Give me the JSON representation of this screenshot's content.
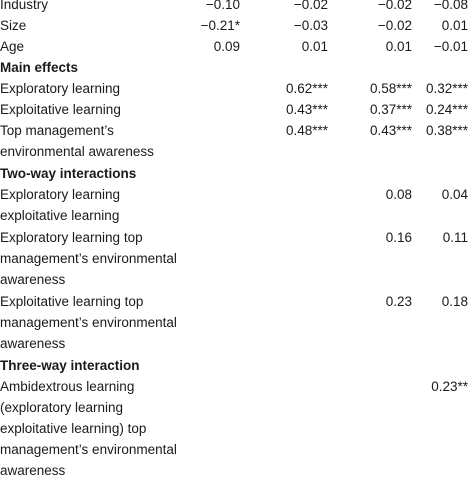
{
  "rows": [
    {
      "type": "data",
      "label": "Industry",
      "v": [
        "−0.10",
        "−0.02",
        "−0.02",
        "−0.08"
      ]
    },
    {
      "type": "data",
      "label": "Size",
      "v": [
        "−0.21*",
        "−0.03",
        "−0.02",
        "0.01"
      ]
    },
    {
      "type": "data",
      "label": "Age",
      "v": [
        "0.09",
        "0.01",
        "0.01",
        "−0.01"
      ]
    },
    {
      "type": "section",
      "label": "Main effects"
    },
    {
      "type": "data",
      "label": "Exploratory learning",
      "v": [
        "",
        "0.62***",
        "0.58***",
        "0.32***"
      ]
    },
    {
      "type": "data",
      "label": "Exploitative learning",
      "v": [
        "",
        "0.43***",
        "0.37***",
        "0.24***"
      ]
    },
    {
      "type": "data",
      "label": "Top management’s environmental awareness",
      "v": [
        "",
        "0.48***",
        "0.43***",
        "0.38***"
      ]
    },
    {
      "type": "section",
      "label": "Two-way interactions"
    },
    {
      "type": "data",
      "label": "Exploratory learning exploitative learning",
      "v": [
        "",
        "",
        "0.08",
        "0.04"
      ]
    },
    {
      "type": "data",
      "label": "Exploratory learning top management’s environmental awareness",
      "v": [
        "",
        "",
        "0.16",
        "0.11"
      ]
    },
    {
      "type": "data",
      "label": "Exploitative learning top management’s environmental awareness",
      "v": [
        "",
        "",
        "0.23",
        "0.18"
      ]
    },
    {
      "type": "section",
      "label": "Three-way interaction"
    },
    {
      "type": "data",
      "label": "Ambidextrous learning (exploratory learning exploitative learning) top management’s environmental awareness",
      "v": [
        "",
        "",
        "",
        "0.23**"
      ]
    }
  ]
}
